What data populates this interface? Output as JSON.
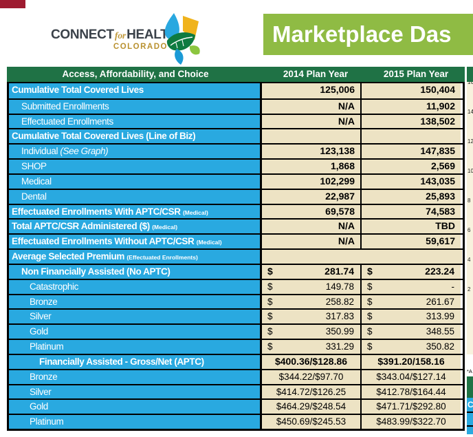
{
  "branding": {
    "connect": "CONNECT",
    "for": "for",
    "health": "HEALTH",
    "colorado": "COLORADO",
    "tm": "™"
  },
  "banner": {
    "title": "Marketplace Das"
  },
  "colors": {
    "brand_dark_green": "#1F7245",
    "banner_green": "#8FBB44",
    "row_blue": "#29A9E0",
    "cell_tan": "#EDE3C4",
    "chart_cream": "#F8F2DE",
    "red_fragment": "#9E1B30",
    "logo_gold": "#B9912F"
  },
  "table": {
    "headers": [
      "Access, Affordability, and Choice",
      "2014 Plan Year",
      "2015 Plan Year"
    ],
    "rows": [
      {
        "label": "Cumulative Total Covered Lives",
        "bold": true,
        "indent": 0,
        "type": "num",
        "bold_values": true,
        "v2014": "125,006",
        "v2015": "150,404"
      },
      {
        "label": "Submitted Enrollments",
        "indent": 1,
        "type": "num",
        "bold_values": true,
        "v2014": "N/A",
        "v2015": "11,902"
      },
      {
        "label": "Effectuated Enrollments",
        "indent": 1,
        "type": "num",
        "bold_values": true,
        "v2014": "N/A",
        "v2015": "138,502"
      },
      {
        "label": "Cumulative Total Covered Lives (Line of Biz)",
        "bold": true,
        "indent": 0,
        "type": "num",
        "v2014": "",
        "v2015": ""
      },
      {
        "label": "Individual ",
        "italic": "(See Graph)",
        "indent": 1,
        "type": "num",
        "bold_values": true,
        "v2014": "123,138",
        "v2015": "147,835"
      },
      {
        "label": "SHOP",
        "indent": 1,
        "type": "num",
        "bold_values": true,
        "v2014": "1,868",
        "v2015": "2,569"
      },
      {
        "label": "Medical",
        "indent": 1,
        "type": "num",
        "bold_values": true,
        "v2014": "102,299",
        "v2015": "143,035"
      },
      {
        "label": "Dental",
        "indent": 1,
        "type": "num",
        "bold_values": true,
        "v2014": "22,987",
        "v2015": "25,893"
      },
      {
        "label": "Effectuated Enrollments With APTC/CSR ",
        "small": "(Medical)",
        "bold": true,
        "indent": 0,
        "type": "num",
        "bold_values": true,
        "v2014": "69,578",
        "v2015": "74,583"
      },
      {
        "label": "Total APTC/CSR Administered ($) ",
        "small": "(Medical)",
        "bold": true,
        "indent": 0,
        "type": "num",
        "bold_values": true,
        "v2014": "N/A",
        "v2015": "TBD"
      },
      {
        "label": "Effectuated Enrollments Without APTC/CSR ",
        "small": "(Medical)",
        "bold": true,
        "indent": 0,
        "type": "num",
        "bold_values": true,
        "v2014": "N/A",
        "v2015": "59,617"
      },
      {
        "label": "Average Selected Premium ",
        "small": "(Effectuated Enrollments)",
        "bold": true,
        "indent": 0,
        "type": "merged"
      },
      {
        "label": "Non Financially Assisted (No APTC)",
        "bold": true,
        "indent": 1,
        "type": "acct",
        "bold_values": true,
        "v2014": "281.74",
        "v2015": "223.24"
      },
      {
        "label": "Catastrophic",
        "indent": 2,
        "type": "acct",
        "v2014": "149.78",
        "v2015": "-"
      },
      {
        "label": "Bronze",
        "indent": 2,
        "type": "acct",
        "v2014": "258.82",
        "v2015": "261.67"
      },
      {
        "label": "Silver",
        "indent": 2,
        "type": "acct",
        "v2014": "317.83",
        "v2015": "313.99"
      },
      {
        "label": "Gold",
        "indent": 2,
        "type": "acct",
        "v2014": "350.99",
        "v2015": "348.55"
      },
      {
        "label": "Platinum",
        "indent": 2,
        "type": "acct",
        "v2014": "331.29",
        "v2015": "350.82"
      },
      {
        "label": "Financially Assisted - Gross/Net (APTC)",
        "bold": true,
        "indent": 3,
        "type": "center",
        "bold_values": true,
        "v2014": "$400.36/$128.86",
        "v2015": "$391.20/158.16"
      },
      {
        "label": "Bronze",
        "indent": 2,
        "type": "center",
        "v2014": "$344.22/$97.70",
        "v2015": "$343.04/$127.14"
      },
      {
        "label": "Silver",
        "indent": 2,
        "type": "center",
        "v2014": "$414.72/$126.25",
        "v2015": "$412.78/$164.44"
      },
      {
        "label": "Gold",
        "indent": 2,
        "type": "center",
        "v2014": "$464.29/$248.54",
        "v2015": "$471.71/$292.80"
      },
      {
        "label": "Platinum",
        "indent": 2,
        "type": "center",
        "v2014": "$450.69/$245.53",
        "v2015": "$483.99/$322.70"
      }
    ],
    "currency_symbol": "$"
  },
  "right_strip": {
    "axis_labels": [
      "16",
      "14",
      "12",
      "10",
      "8",
      "6",
      "4",
      "2"
    ],
    "footnote": "*A",
    "first_row_label": "C"
  }
}
